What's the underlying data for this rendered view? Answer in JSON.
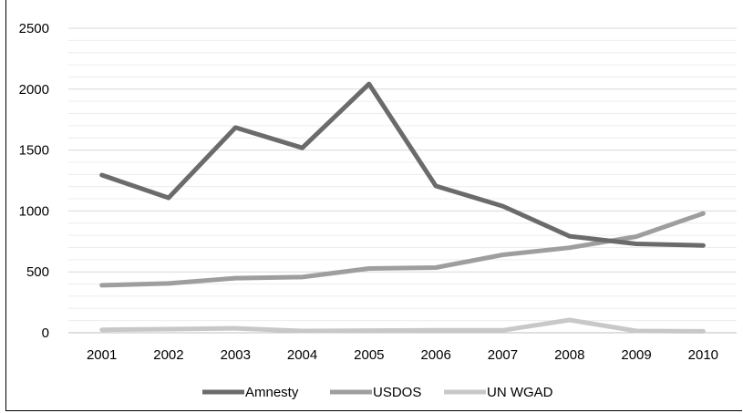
{
  "chart_data": {
    "type": "line",
    "title": "",
    "xlabel": "",
    "ylabel": "",
    "categories": [
      "2001",
      "2002",
      "2003",
      "2004",
      "2005",
      "2006",
      "2007",
      "2008",
      "2009",
      "2010"
    ],
    "ylim": [
      0,
      2500
    ],
    "yticks": [
      0,
      500,
      1000,
      1500,
      2000,
      2500
    ],
    "grid": "horizontal-minor-and-major",
    "legend_position": "bottom",
    "series": [
      {
        "name": "Amnesty",
        "color": "#6b6b6b",
        "values": [
          1295,
          1108,
          1685,
          1518,
          2043,
          1205,
          1040,
          793,
          730,
          717
        ]
      },
      {
        "name": "USDOS",
        "color": "#9e9e9e",
        "values": [
          390,
          405,
          448,
          457,
          528,
          535,
          640,
          698,
          790,
          980
        ]
      },
      {
        "name": "UN WGAD",
        "color": "#c8c8c8",
        "values": [
          25,
          30,
          37,
          15,
          18,
          20,
          20,
          105,
          15,
          12
        ]
      }
    ]
  }
}
